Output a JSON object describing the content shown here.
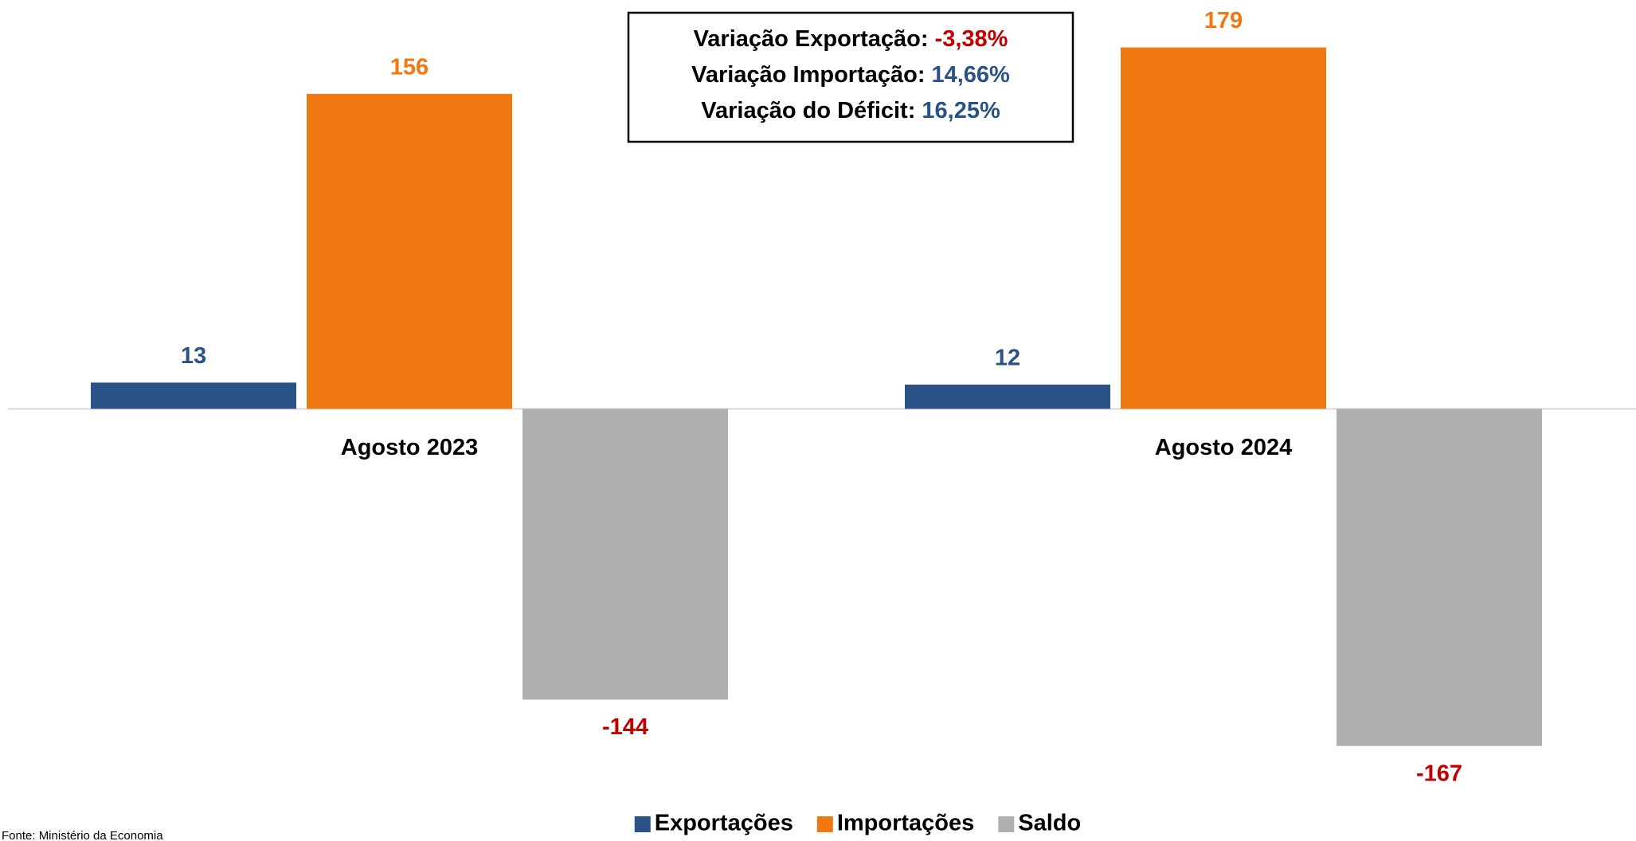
{
  "chart_data": {
    "type": "bar",
    "categories": [
      "Agosto 2023",
      "Agosto 2024"
    ],
    "series": [
      {
        "name": "Exportações",
        "color": "#2a5286",
        "values": [
          13,
          12
        ]
      },
      {
        "name": "Importações",
        "color": "#f07810",
        "values": [
          156,
          179
        ]
      },
      {
        "name": "Saldo",
        "color": "#b0b0b0",
        "values": [
          -144,
          -167
        ]
      }
    ],
    "negative_label_color": "#c00000",
    "ylim": [
      -190,
      195
    ],
    "annotations": [
      {
        "label": "Variação Exportação:",
        "value": "-3,38%",
        "color": "#c00000"
      },
      {
        "label": "Variação Importação:",
        "value": "14,66%",
        "color": "#2a5286"
      },
      {
        "label": "Variação do Déficit:",
        "value": "16,25%",
        "color": "#2a5286"
      }
    ],
    "legend": "bottom",
    "source": "Fonte: Ministério da Economia"
  }
}
